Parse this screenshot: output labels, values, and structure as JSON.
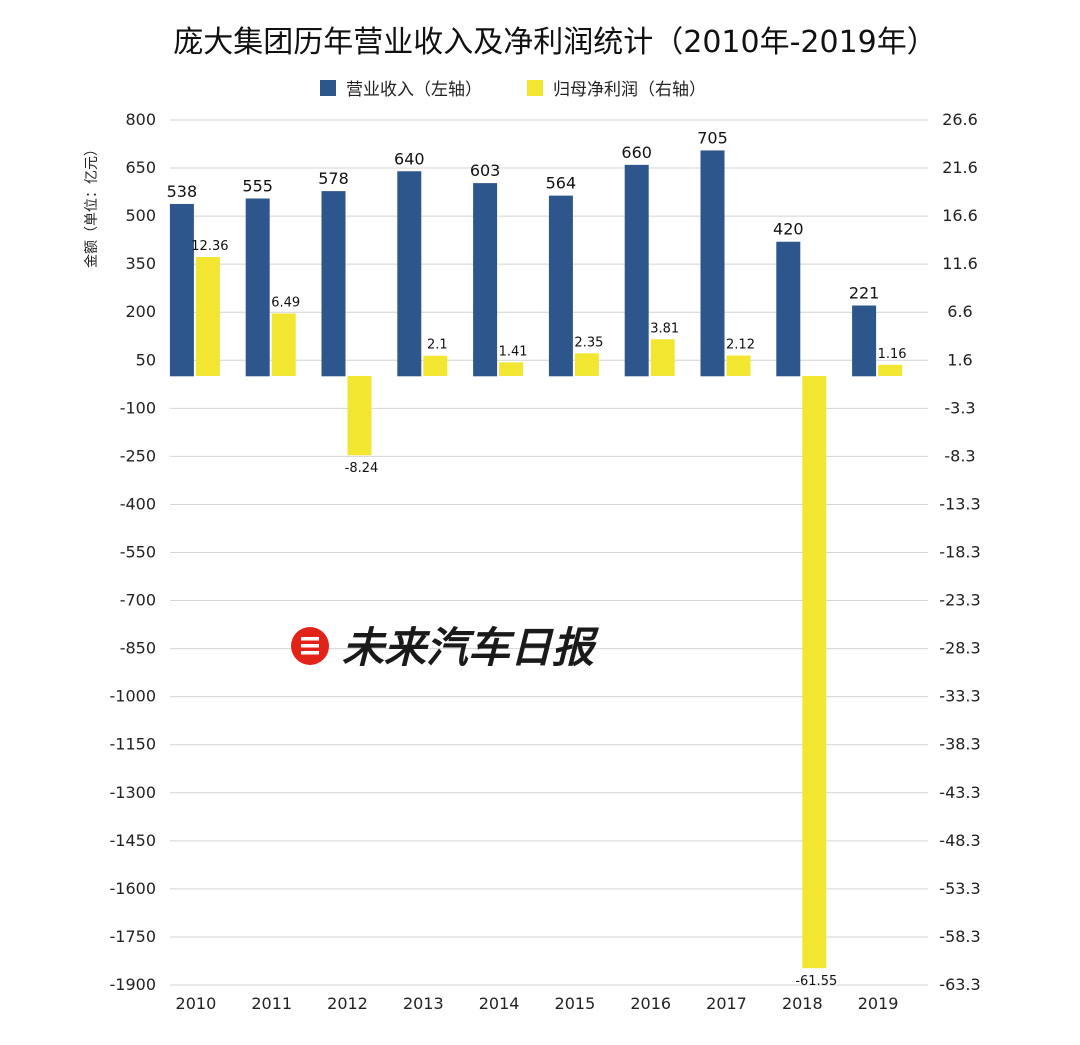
{
  "chart_data": {
    "type": "bar",
    "title": "庞大集团历年营业收入及净利润统计（2010年-2019年）",
    "ylabel": "金额（单位：亿元）",
    "categories": [
      "2010",
      "2011",
      "2012",
      "2013",
      "2014",
      "2015",
      "2016",
      "2017",
      "2018",
      "2019"
    ],
    "series": [
      {
        "name": "营业收入（左轴）",
        "axis": "left",
        "color": "#2d568c",
        "values": [
          538,
          555,
          578,
          640,
          603,
          564,
          660,
          705,
          420,
          221
        ]
      },
      {
        "name": "归母净利润（右轴）",
        "axis": "right",
        "color": "#f2e631",
        "values": [
          12.36,
          6.49,
          -8.24,
          2.1,
          1.41,
          2.35,
          3.81,
          2.12,
          -61.55,
          1.16
        ]
      }
    ],
    "left_axis": {
      "range": [
        -1900,
        800
      ],
      "ticks": [
        800,
        650,
        500,
        350,
        200,
        50,
        -100,
        -250,
        -400,
        -550,
        -700,
        -850,
        -1000,
        -1150,
        -1300,
        -1450,
        -1600,
        -1750,
        -1900
      ]
    },
    "right_axis": {
      "range": [
        -63.3,
        26.6
      ],
      "ticks": [
        "26.6",
        "21.6",
        "16.6",
        "11.6",
        "6.6",
        "1.6",
        "-3.3",
        "-8.3",
        "-13.3",
        "-18.3",
        "-23.3",
        "-28.3",
        "-33.3",
        "-38.3",
        "-43.3",
        "-48.3",
        "-53.3",
        "-58.3",
        "-63.3"
      ]
    },
    "grid": true,
    "legend": "top-center"
  },
  "watermark": {
    "text": "未来汽车日报",
    "icon": "logo-icon",
    "color": "#e2231a"
  }
}
